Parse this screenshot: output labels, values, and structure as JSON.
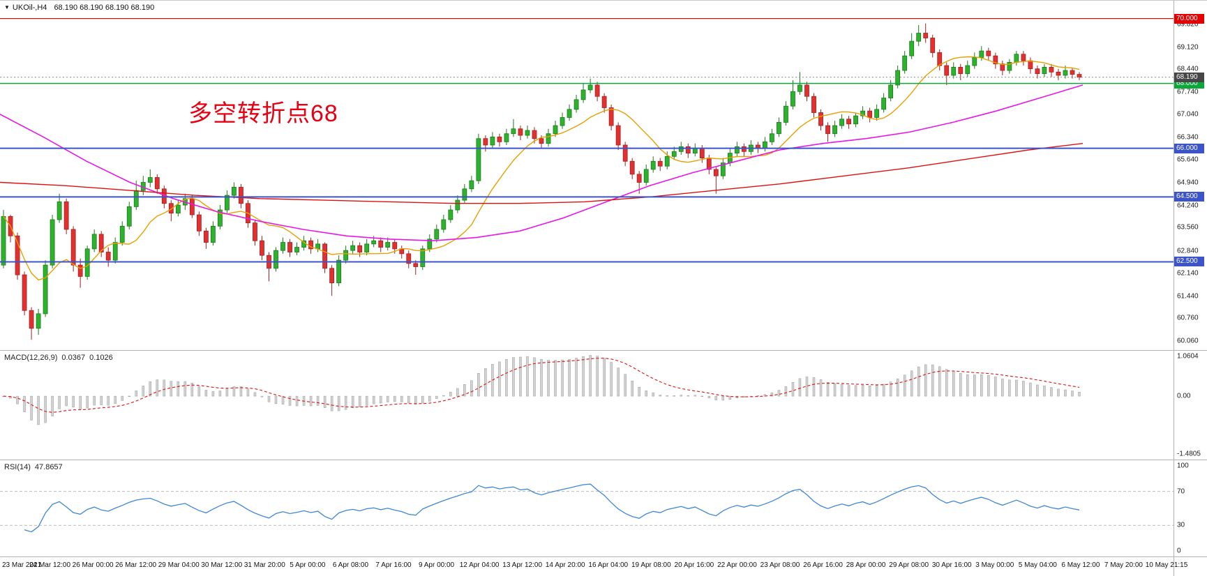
{
  "window": {
    "dropdown_icon": "▼",
    "title_symbol": "UKOil-,H4",
    "title_ohlc": "68.190 68.190 68.190 68.190"
  },
  "annotation": {
    "text": "多空转折点68",
    "color": "#e60012"
  },
  "colors": {
    "background": "#ffffff",
    "bull": "#2db22d",
    "bull_border": "#1a7a1a",
    "bear": "#e23030",
    "bear_border": "#a32020",
    "panel_border": "#b2b2b2",
    "axis_text": "#1a1a1a",
    "grid_badge_text": "#ffffff",
    "current_price_badge": "#474747"
  },
  "chart_data": [
    {
      "type": "candlestick",
      "symbol": "UKOil-",
      "timeframe": "H4",
      "current_price": 68.19,
      "y_range": [
        59.78,
        70.55
      ],
      "y_ticks": [
        "69.820",
        "69.120",
        "68.440",
        "67.740",
        "67.040",
        "66.340",
        "65.640",
        "64.940",
        "64.240",
        "63.560",
        "62.840",
        "62.140",
        "61.440",
        "60.760",
        "60.060"
      ],
      "x_labels": [
        "23 Mar 2021",
        "24 Mar 12:00",
        "26 Mar 00:00",
        "26 Mar 12:00",
        "29 Mar 04:00",
        "30 Mar 12:00",
        "31 Mar 20:00",
        "5 Apr 00:00",
        "6 Apr 08:00",
        "7 Apr 16:00",
        "9 Apr 00:00",
        "12 Apr 04:00",
        "13 Apr 12:00",
        "14 Apr 20:00",
        "16 Apr 04:00",
        "19 Apr 08:00",
        "20 Apr 16:00",
        "22 Apr 00:00",
        "23 Apr 08:00",
        "26 Apr 16:00",
        "28 Apr 00:00",
        "29 Apr 08:00",
        "30 Apr 16:00",
        "3 May 00:00",
        "5 May 04:00",
        "6 May 12:00",
        "7 May 20:00",
        "10 May 21:15"
      ],
      "horizontal_levels": [
        {
          "price": 70.0,
          "label": "70.000",
          "color": "#e40000",
          "width": 1.2
        },
        {
          "price": 68.0,
          "label": "68.000",
          "color": "#0ca83c",
          "width": 1.6
        },
        {
          "price": 66.0,
          "label": "66.000",
          "color": "#3b54c9",
          "width": 2
        },
        {
          "price": 64.5,
          "label": "64.500",
          "color": "#3b54c9",
          "width": 2
        },
        {
          "price": 62.5,
          "label": "62.500",
          "color": "#3b54c9",
          "width": 2
        }
      ],
      "price_marker": {
        "price": 68.19,
        "label": "68.190",
        "color": "#474747"
      },
      "moving_averages": {
        "fast": {
          "name": "fast-ma",
          "color": "#e8a000",
          "period": 10
        },
        "mid": {
          "name": "mid-ma",
          "color": "#e816e8",
          "points": [
            [
              0,
              67.05
            ],
            [
              0.04,
              66.35
            ],
            [
              0.08,
              65.6
            ],
            [
              0.12,
              64.95
            ],
            [
              0.16,
              64.45
            ],
            [
              0.2,
              64.05
            ],
            [
              0.24,
              63.75
            ],
            [
              0.28,
              63.5
            ],
            [
              0.32,
              63.3
            ],
            [
              0.36,
              63.2
            ],
            [
              0.4,
              63.15
            ],
            [
              0.44,
              63.25
            ],
            [
              0.48,
              63.45
            ],
            [
              0.52,
              63.85
            ],
            [
              0.56,
              64.35
            ],
            [
              0.6,
              64.85
            ],
            [
              0.64,
              65.25
            ],
            [
              0.68,
              65.6
            ],
            [
              0.72,
              65.95
            ],
            [
              0.76,
              66.15
            ],
            [
              0.8,
              66.3
            ],
            [
              0.84,
              66.5
            ],
            [
              0.88,
              66.8
            ],
            [
              0.92,
              67.15
            ],
            [
              0.96,
              67.55
            ],
            [
              1.0,
              67.95
            ]
          ]
        },
        "slow": {
          "name": "slow-ma",
          "color": "#e01010",
          "points": [
            [
              0,
              64.95
            ],
            [
              0.06,
              64.85
            ],
            [
              0.12,
              64.7
            ],
            [
              0.18,
              64.55
            ],
            [
              0.24,
              64.45
            ],
            [
              0.3,
              64.4
            ],
            [
              0.36,
              64.35
            ],
            [
              0.42,
              64.3
            ],
            [
              0.48,
              64.3
            ],
            [
              0.54,
              64.35
            ],
            [
              0.6,
              64.5
            ],
            [
              0.66,
              64.7
            ],
            [
              0.72,
              64.9
            ],
            [
              0.78,
              65.15
            ],
            [
              0.84,
              65.4
            ],
            [
              0.9,
              65.7
            ],
            [
              0.95,
              65.95
            ],
            [
              1.0,
              66.15
            ]
          ]
        }
      },
      "ohlc": [
        [
          62.4,
          64.1,
          62.3,
          63.9
        ],
        [
          63.9,
          63.95,
          63.1,
          63.3
        ],
        [
          63.3,
          63.4,
          61.95,
          62.1
        ],
        [
          62.1,
          62.2,
          60.85,
          61.0
        ],
        [
          61.0,
          61.1,
          60.1,
          60.45
        ],
        [
          60.45,
          61.05,
          60.25,
          60.9
        ],
        [
          60.9,
          62.55,
          60.8,
          62.4
        ],
        [
          62.4,
          63.95,
          62.3,
          63.8
        ],
        [
          63.8,
          64.6,
          63.7,
          64.35
        ],
        [
          64.35,
          64.45,
          63.35,
          63.5
        ],
        [
          63.5,
          63.6,
          62.2,
          62.4
        ],
        [
          62.4,
          62.6,
          61.7,
          62.05
        ],
        [
          62.05,
          63.0,
          61.95,
          62.9
        ],
        [
          62.9,
          63.5,
          62.8,
          63.35
        ],
        [
          63.35,
          63.45,
          62.65,
          62.8
        ],
        [
          62.8,
          62.95,
          62.35,
          62.55
        ],
        [
          62.55,
          63.25,
          62.45,
          63.1
        ],
        [
          63.1,
          63.75,
          63.0,
          63.6
        ],
        [
          63.6,
          64.35,
          63.5,
          64.2
        ],
        [
          64.2,
          65.0,
          64.1,
          64.7
        ],
        [
          64.7,
          65.15,
          64.55,
          64.95
        ],
        [
          64.95,
          65.35,
          64.8,
          65.1
        ],
        [
          65.1,
          65.2,
          64.6,
          64.75
        ],
        [
          64.75,
          64.85,
          64.15,
          64.3
        ],
        [
          64.3,
          64.4,
          63.75,
          64.0
        ],
        [
          64.0,
          64.4,
          63.9,
          64.25
        ],
        [
          64.25,
          64.6,
          64.1,
          64.45
        ],
        [
          64.45,
          64.55,
          63.85,
          63.95
        ],
        [
          63.95,
          64.05,
          63.3,
          63.45
        ],
        [
          63.45,
          63.55,
          62.9,
          63.1
        ],
        [
          63.1,
          63.75,
          63.0,
          63.6
        ],
        [
          63.6,
          64.25,
          63.5,
          64.1
        ],
        [
          64.1,
          64.7,
          64.0,
          64.55
        ],
        [
          64.55,
          64.95,
          64.45,
          64.8
        ],
        [
          64.8,
          64.9,
          64.15,
          64.3
        ],
        [
          64.3,
          64.4,
          63.55,
          63.7
        ],
        [
          63.7,
          63.8,
          63.0,
          63.15
        ],
        [
          63.15,
          63.3,
          62.55,
          62.7
        ],
        [
          62.7,
          62.8,
          61.9,
          62.3
        ],
        [
          62.3,
          62.95,
          62.2,
          62.85
        ],
        [
          62.85,
          63.25,
          62.75,
          63.1
        ],
        [
          63.1,
          63.2,
          62.65,
          62.8
        ],
        [
          62.8,
          63.1,
          62.7,
          62.95
        ],
        [
          62.95,
          63.3,
          62.85,
          63.15
        ],
        [
          63.15,
          63.25,
          62.75,
          62.9
        ],
        [
          62.9,
          63.2,
          62.8,
          63.05
        ],
        [
          63.05,
          63.1,
          62.15,
          62.3
        ],
        [
          62.3,
          62.4,
          61.45,
          61.85
        ],
        [
          61.85,
          62.7,
          61.75,
          62.55
        ],
        [
          62.55,
          63.0,
          62.45,
          62.85
        ],
        [
          62.85,
          63.15,
          62.75,
          63.0
        ],
        [
          63.0,
          63.1,
          62.65,
          62.8
        ],
        [
          62.8,
          63.2,
          62.7,
          63.05
        ],
        [
          63.05,
          63.3,
          62.95,
          63.15
        ],
        [
          63.15,
          63.25,
          62.8,
          62.95
        ],
        [
          62.95,
          63.25,
          62.85,
          63.1
        ],
        [
          63.1,
          63.2,
          62.75,
          62.9
        ],
        [
          62.9,
          63.0,
          62.6,
          62.75
        ],
        [
          62.75,
          62.85,
          62.3,
          62.45
        ],
        [
          62.45,
          62.55,
          62.1,
          62.35
        ],
        [
          62.35,
          63.0,
          62.25,
          62.9
        ],
        [
          62.9,
          63.35,
          62.8,
          63.2
        ],
        [
          63.2,
          63.65,
          63.1,
          63.5
        ],
        [
          63.5,
          63.95,
          63.4,
          63.8
        ],
        [
          63.8,
          64.25,
          63.7,
          64.1
        ],
        [
          64.1,
          64.55,
          64.0,
          64.4
        ],
        [
          64.4,
          64.9,
          64.3,
          64.75
        ],
        [
          64.75,
          65.15,
          64.65,
          65.0
        ],
        [
          65.0,
          66.45,
          64.9,
          66.3
        ],
        [
          66.3,
          66.4,
          65.9,
          66.1
        ],
        [
          66.1,
          66.5,
          66.0,
          66.35
        ],
        [
          66.35,
          66.45,
          66.05,
          66.2
        ],
        [
          66.2,
          66.6,
          66.1,
          66.45
        ],
        [
          66.45,
          66.9,
          66.35,
          66.6
        ],
        [
          66.6,
          66.7,
          66.25,
          66.4
        ],
        [
          66.4,
          66.7,
          66.3,
          66.55
        ],
        [
          66.55,
          66.65,
          66.15,
          66.3
        ],
        [
          66.3,
          66.4,
          66.0,
          66.15
        ],
        [
          66.15,
          66.6,
          66.05,
          66.45
        ],
        [
          66.45,
          66.85,
          66.35,
          66.7
        ],
        [
          66.7,
          67.1,
          66.6,
          66.95
        ],
        [
          66.95,
          67.35,
          66.85,
          67.2
        ],
        [
          67.2,
          67.65,
          67.1,
          67.5
        ],
        [
          67.5,
          68.0,
          67.4,
          67.8
        ],
        [
          67.8,
          68.15,
          67.7,
          67.95
        ],
        [
          67.95,
          68.05,
          67.45,
          67.6
        ],
        [
          67.6,
          67.7,
          67.1,
          67.25
        ],
        [
          67.25,
          67.35,
          66.55,
          66.7
        ],
        [
          66.7,
          66.8,
          65.95,
          66.1
        ],
        [
          66.1,
          66.2,
          65.45,
          65.6
        ],
        [
          65.6,
          65.7,
          65.05,
          65.2
        ],
        [
          65.2,
          65.3,
          64.6,
          64.95
        ],
        [
          64.95,
          65.5,
          64.85,
          65.35
        ],
        [
          65.35,
          65.75,
          65.25,
          65.6
        ],
        [
          65.6,
          65.7,
          65.3,
          65.45
        ],
        [
          65.45,
          65.9,
          65.35,
          65.75
        ],
        [
          65.75,
          66.05,
          65.65,
          65.9
        ],
        [
          65.9,
          66.2,
          65.8,
          66.05
        ],
        [
          66.05,
          66.15,
          65.7,
          65.85
        ],
        [
          65.85,
          66.15,
          65.75,
          66.0
        ],
        [
          66.0,
          66.1,
          65.55,
          65.7
        ],
        [
          65.7,
          65.8,
          65.2,
          65.35
        ],
        [
          65.35,
          65.45,
          64.6,
          65.15
        ],
        [
          65.15,
          65.7,
          65.05,
          65.55
        ],
        [
          65.55,
          66.0,
          65.45,
          65.85
        ],
        [
          65.85,
          66.2,
          65.75,
          66.05
        ],
        [
          66.05,
          66.15,
          65.75,
          65.9
        ],
        [
          65.9,
          66.25,
          65.8,
          66.1
        ],
        [
          66.1,
          66.2,
          65.85,
          66.0
        ],
        [
          66.0,
          66.35,
          65.9,
          66.2
        ],
        [
          66.2,
          66.6,
          66.1,
          66.45
        ],
        [
          66.45,
          66.95,
          66.35,
          66.8
        ],
        [
          66.8,
          67.45,
          66.7,
          67.3
        ],
        [
          67.3,
          68.1,
          67.2,
          67.75
        ],
        [
          67.75,
          68.35,
          67.65,
          67.95
        ],
        [
          67.95,
          68.05,
          67.45,
          67.6
        ],
        [
          67.6,
          67.7,
          66.95,
          67.1
        ],
        [
          67.1,
          67.2,
          66.55,
          66.7
        ],
        [
          66.7,
          66.8,
          66.2,
          66.45
        ],
        [
          66.45,
          66.85,
          66.35,
          66.7
        ],
        [
          66.7,
          67.05,
          66.6,
          66.9
        ],
        [
          66.9,
          67.0,
          66.6,
          66.75
        ],
        [
          66.75,
          67.1,
          66.65,
          67.0
        ],
        [
          67.0,
          67.3,
          66.9,
          67.15
        ],
        [
          67.15,
          67.25,
          66.8,
          66.95
        ],
        [
          66.95,
          67.35,
          66.85,
          67.2
        ],
        [
          67.2,
          67.7,
          67.1,
          67.55
        ],
        [
          67.55,
          68.1,
          67.45,
          67.95
        ],
        [
          67.95,
          68.55,
          67.85,
          68.4
        ],
        [
          68.4,
          69.0,
          68.3,
          68.85
        ],
        [
          68.85,
          69.55,
          68.75,
          69.3
        ],
        [
          69.3,
          69.8,
          69.15,
          69.55
        ],
        [
          69.55,
          69.85,
          69.25,
          69.4
        ],
        [
          69.4,
          69.5,
          68.8,
          68.95
        ],
        [
          68.95,
          69.05,
          68.4,
          68.55
        ],
        [
          68.55,
          68.65,
          67.95,
          68.25
        ],
        [
          68.25,
          68.65,
          68.15,
          68.5
        ],
        [
          68.5,
          68.6,
          68.1,
          68.3
        ],
        [
          68.3,
          68.7,
          68.2,
          68.55
        ],
        [
          68.55,
          68.95,
          68.45,
          68.8
        ],
        [
          68.8,
          69.15,
          68.7,
          69.0
        ],
        [
          69.0,
          69.1,
          68.7,
          68.85
        ],
        [
          68.85,
          68.95,
          68.45,
          68.6
        ],
        [
          68.6,
          68.7,
          68.25,
          68.4
        ],
        [
          68.4,
          68.75,
          68.3,
          68.65
        ],
        [
          68.65,
          69.0,
          68.55,
          68.9
        ],
        [
          68.9,
          69.0,
          68.55,
          68.7
        ],
        [
          68.7,
          68.8,
          68.3,
          68.45
        ],
        [
          68.45,
          68.55,
          68.15,
          68.3
        ],
        [
          68.3,
          68.6,
          68.2,
          68.5
        ],
        [
          68.5,
          68.6,
          68.2,
          68.35
        ],
        [
          68.35,
          68.45,
          68.1,
          68.25
        ],
        [
          68.25,
          68.55,
          68.15,
          68.4
        ],
        [
          68.4,
          68.48,
          68.15,
          68.28
        ],
        [
          68.28,
          68.35,
          68.1,
          68.19
        ]
      ]
    },
    {
      "type": "macd",
      "label": "MACD(12,26,9)",
      "value_macd": "0.0367",
      "value_signal": "0.1026",
      "params": [
        12,
        26,
        9
      ],
      "y_max": 1.0604,
      "y_min": -1.4805,
      "y_ticks": [
        "1.0604",
        "0.00",
        "-1.4805"
      ],
      "histogram_color": "#d2d2d2",
      "histogram_border": "#9a9a9a",
      "signal_color": "#e01010",
      "source": "computed_from_ohlc"
    },
    {
      "type": "rsi",
      "label": "RSI(14)",
      "value": "47.8657",
      "period": 14,
      "levels": [
        70,
        30
      ],
      "y_ticks": [
        "100",
        "70",
        "30",
        "0"
      ],
      "line_color": "#3d86d8",
      "level_color": "#bcbcbc",
      "source": "computed_from_ohlc"
    }
  ]
}
